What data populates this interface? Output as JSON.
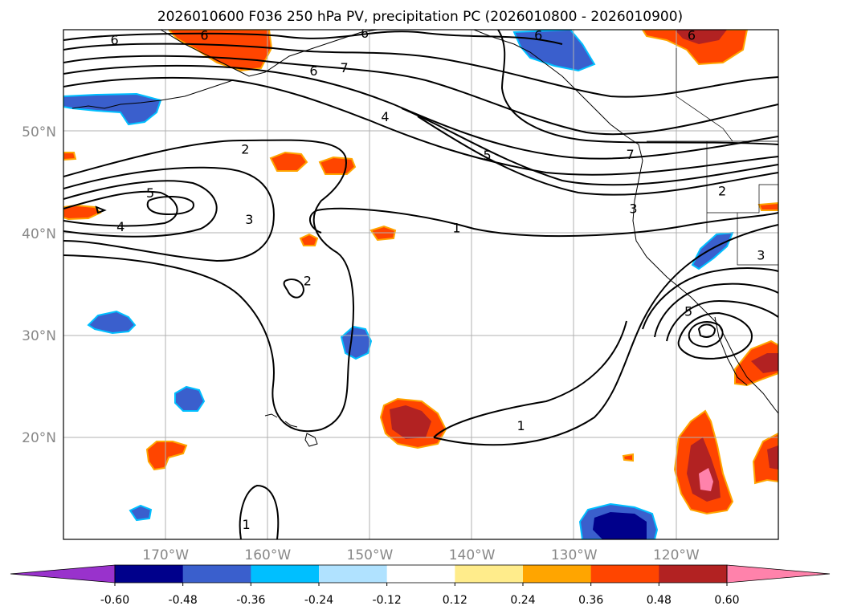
{
  "title": "2026010600 F036 250 hPa PV, precipitation PC (2026010800 - 2026010900)",
  "map": {
    "lon_range": [
      -180,
      -110
    ],
    "lat_range": [
      10,
      60
    ],
    "lon_ticks": [
      {
        "lon": -170,
        "label": "170°W"
      },
      {
        "lon": -160,
        "label": "160°W"
      },
      {
        "lon": -150,
        "label": "150°W"
      },
      {
        "lon": -140,
        "label": "140°W"
      },
      {
        "lon": -130,
        "label": "130°W"
      },
      {
        "lon": -120,
        "label": "120°W"
      }
    ],
    "lat_ticks": [
      {
        "lat": 20,
        "label": "20°N"
      },
      {
        "lat": 30,
        "label": "30°N"
      },
      {
        "lat": 40,
        "label": "40°N"
      },
      {
        "lat": 50,
        "label": "50°N"
      }
    ],
    "grid": true
  },
  "colorbar": {
    "levels": [
      "-0.60",
      "-0.48",
      "-0.36",
      "-0.24",
      "-0.12",
      "0.12",
      "0.24",
      "0.36",
      "0.48",
      "0.60"
    ],
    "colors": [
      "#9932cc",
      "#00008b",
      "#3a5fcd",
      "#00bfff",
      "#b0e2ff",
      "#ffffff",
      "#ffec8b",
      "#ffa500",
      "#ff4500",
      "#b22222",
      "#ff82ab"
    ]
  },
  "pv_contour_labels": [
    {
      "text": "6",
      "lon": -175,
      "lat": 59
    },
    {
      "text": "6",
      "lon": -166.2,
      "lat": 59.5
    },
    {
      "text": "6",
      "lon": -150.5,
      "lat": 59.7
    },
    {
      "text": "6",
      "lon": -133.5,
      "lat": 59.5
    },
    {
      "text": "6",
      "lon": -118.5,
      "lat": 59.5
    },
    {
      "text": "6",
      "lon": -155.5,
      "lat": 56
    },
    {
      "text": "7",
      "lon": -152.5,
      "lat": 56.3
    },
    {
      "text": "4",
      "lon": -148.5,
      "lat": 51.5
    },
    {
      "text": "5",
      "lon": -138.5,
      "lat": 47.7
    },
    {
      "text": "7",
      "lon": -124.5,
      "lat": 47.8
    },
    {
      "text": "2",
      "lon": -162.2,
      "lat": 48.3
    },
    {
      "text": "5",
      "lon": -171.5,
      "lat": 44
    },
    {
      "text": "4",
      "lon": -174.4,
      "lat": 40.7
    },
    {
      "text": "3",
      "lon": -161.8,
      "lat": 41.4
    },
    {
      "text": "1",
      "lon": -141.5,
      "lat": 40.6
    },
    {
      "text": "3",
      "lon": -124.2,
      "lat": 42.5
    },
    {
      "text": "2",
      "lon": -115.5,
      "lat": 44.2
    },
    {
      "text": "3",
      "lon": -111.7,
      "lat": 37.9
    },
    {
      "text": "2",
      "lon": -156.1,
      "lat": 35.4
    },
    {
      "text": "5",
      "lon": -118.8,
      "lat": 32.4
    },
    {
      "text": "1",
      "lon": -135.2,
      "lat": 21.2
    },
    {
      "text": "1",
      "lon": -162.1,
      "lat": 11.5
    }
  ]
}
